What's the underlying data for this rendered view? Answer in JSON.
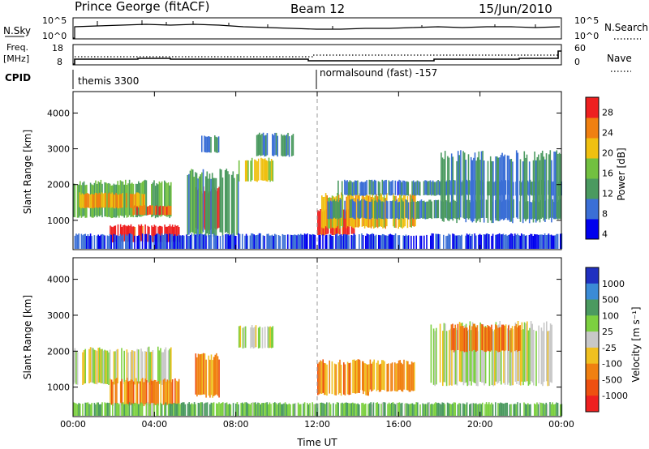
{
  "header": {
    "radar": "Prince George (fitACF)",
    "beam": "Beam 12",
    "date": "15/Jun/2010"
  },
  "strips": {
    "nsky_label": "N.Sky",
    "nsky_ticks": [
      "10^5",
      "10^0"
    ],
    "nsearch_label": "N.Search",
    "nsearch_ticks": [
      "10^5",
      "10^0"
    ],
    "freq_label": "Freq.",
    "freq_unit": "[MHz]",
    "freq_ticks": [
      "18",
      "8"
    ],
    "nave_label": "Nave",
    "nave_ticks": [
      "60",
      "0"
    ],
    "cpid_label": "CPID",
    "cpid_segments": [
      "themis 3300",
      "normalsound (fast) -157"
    ]
  },
  "chart_data": [
    {
      "type": "heatmap",
      "title": "Power",
      "xlabel": "",
      "ylabel": "Slant Range [km]",
      "x_ticks": [
        "00:00",
        "04:00",
        "08:00",
        "12:00",
        "16:00",
        "20:00",
        "00:00"
      ],
      "y_ticks": [
        "1000",
        "2000",
        "3000",
        "4000"
      ],
      "xlim": [
        0,
        24
      ],
      "ylim": [
        180,
        4600
      ],
      "colorbar_label": "Power [dB]",
      "colorbar_ticks": [
        "4",
        "8",
        "12",
        "16",
        "20",
        "24",
        "28"
      ],
      "colors": [
        "#0000ee",
        "#3b6fd6",
        "#4b9a60",
        "#72c040",
        "#f0c010",
        "#f08010",
        "#ee2020"
      ],
      "regions": [
        {
          "t": [
            0.0,
            4.8
          ],
          "r": [
            1100,
            2050
          ],
          "level": 0.45
        },
        {
          "t": [
            0.3,
            3.5
          ],
          "r": [
            1350,
            1750
          ],
          "level": 0.72
        },
        {
          "t": [
            2.8,
            4.8
          ],
          "r": [
            1150,
            1400
          ],
          "level": 0.85
        },
        {
          "t": [
            1.8,
            5.2
          ],
          "r": [
            400,
            850
          ],
          "level": 0.95
        },
        {
          "t": [
            6.0,
            7.2
          ],
          "r": [
            750,
            1850
          ],
          "level": 0.95
        },
        {
          "t": [
            5.6,
            8.2
          ],
          "r": [
            600,
            2300
          ],
          "level": 0.35
        },
        {
          "t": [
            6.3,
            7.2
          ],
          "r": [
            2900,
            3350
          ],
          "level": 0.3
        },
        {
          "t": [
            8.0,
            9.8
          ],
          "r": [
            2100,
            2700
          ],
          "level": 0.6
        },
        {
          "t": [
            9.0,
            10.8
          ],
          "r": [
            2800,
            3400
          ],
          "level": 0.3
        },
        {
          "t": [
            12.0,
            13.8
          ],
          "r": [
            600,
            1300
          ],
          "level": 0.95
        },
        {
          "t": [
            12.2,
            16.8
          ],
          "r": [
            800,
            1700
          ],
          "level": 0.65
        },
        {
          "t": [
            12.5,
            24.0
          ],
          "r": [
            1050,
            1550
          ],
          "level": 0.3
        },
        {
          "t": [
            13.0,
            24.0
          ],
          "r": [
            1700,
            2100
          ],
          "level": 0.25
        },
        {
          "t": [
            18.0,
            24.0
          ],
          "r": [
            1000,
            2800
          ],
          "level": 0.3
        },
        {
          "t": [
            0.0,
            24.0
          ],
          "r": [
            180,
            600
          ],
          "level": 0.15
        }
      ]
    },
    {
      "type": "heatmap",
      "title": "Velocity",
      "xlabel": "Time UT",
      "ylabel": "Slant Range [km]",
      "x_ticks": [
        "00:00",
        "04:00",
        "08:00",
        "12:00",
        "16:00",
        "20:00",
        "00:00"
      ],
      "y_ticks": [
        "1000",
        "2000",
        "3000",
        "4000"
      ],
      "xlim": [
        0,
        24
      ],
      "ylim": [
        180,
        4600
      ],
      "colorbar_label": "Velocity [m s⁻¹]",
      "colorbar_ticks": [
        "1000",
        "500",
        "100",
        "25",
        "-25",
        "-100",
        "-500",
        "-1000"
      ],
      "colors": [
        "#2030c0",
        "#3b8bd6",
        "#4b9a60",
        "#7cd040",
        "#c8c8c8",
        "#f0c020",
        "#f08010",
        "#ee5010",
        "#ee2020"
      ],
      "regions": [
        {
          "t": [
            0.0,
            4.8
          ],
          "r": [
            1100,
            2050
          ],
          "level": 0.5
        },
        {
          "t": [
            1.8,
            5.2
          ],
          "r": [
            500,
            1200
          ],
          "level": 0.72
        },
        {
          "t": [
            6.0,
            7.2
          ],
          "r": [
            750,
            1850
          ],
          "level": 0.72
        },
        {
          "t": [
            8.0,
            9.8
          ],
          "r": [
            2100,
            2700
          ],
          "level": 0.5
        },
        {
          "t": [
            12.0,
            14.5
          ],
          "r": [
            800,
            1700
          ],
          "level": 0.72
        },
        {
          "t": [
            14.0,
            16.8
          ],
          "r": [
            900,
            1700
          ],
          "level": 0.68
        },
        {
          "t": [
            17.5,
            23.5
          ],
          "r": [
            1100,
            2700
          ],
          "level": 0.5
        },
        {
          "t": [
            18.5,
            22.0
          ],
          "r": [
            2000,
            2700
          ],
          "level": 0.75
        },
        {
          "t": [
            0.0,
            24.0
          ],
          "r": [
            180,
            550
          ],
          "level": 0.35
        }
      ]
    }
  ]
}
